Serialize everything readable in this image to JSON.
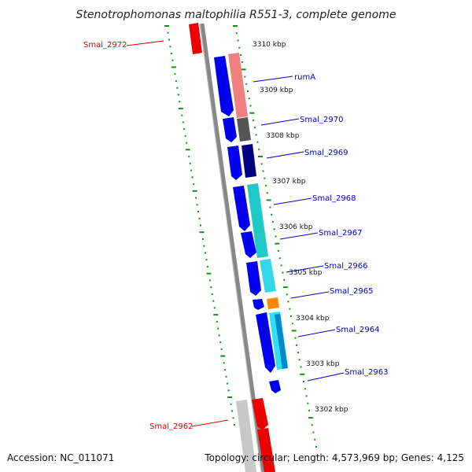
{
  "title": "Stenotrophomonas maltophilia R551-3, complete genome",
  "footer": {
    "accession": "Accession: NC_011071",
    "summary": "Topology: circular; Length: 4,573,969 bp; Genes: 4,125"
  },
  "colors": {
    "forward_gene": "#0000ee",
    "backbone": "#888888",
    "tick_marks": "#1a8a1a",
    "reverse_label": "#dd0000",
    "forward_label": "#0000bb"
  },
  "scale_ticks": [
    "3310 kbp",
    "3309 kbp",
    "3308 kbp",
    "3307 kbp",
    "3306 kbp",
    "3305 kbp",
    "3304 kbp",
    "3303 kbp",
    "3302 kbp"
  ],
  "gene_labels": [
    {
      "name": "Smal_2972",
      "strand": "reverse"
    },
    {
      "name": "rumA",
      "strand": "forward"
    },
    {
      "name": "Smal_2970",
      "strand": "forward"
    },
    {
      "name": "Smal_2969",
      "strand": "forward"
    },
    {
      "name": "Smal_2968",
      "strand": "forward"
    },
    {
      "name": "Smal_2967",
      "strand": "forward"
    },
    {
      "name": "Smal_2966",
      "strand": "forward"
    },
    {
      "name": "Smal_2965",
      "strand": "forward"
    },
    {
      "name": "Smal_2964",
      "strand": "forward"
    },
    {
      "name": "Smal_2963",
      "strand": "forward"
    },
    {
      "name": "Smal_2962",
      "strand": "reverse"
    }
  ]
}
